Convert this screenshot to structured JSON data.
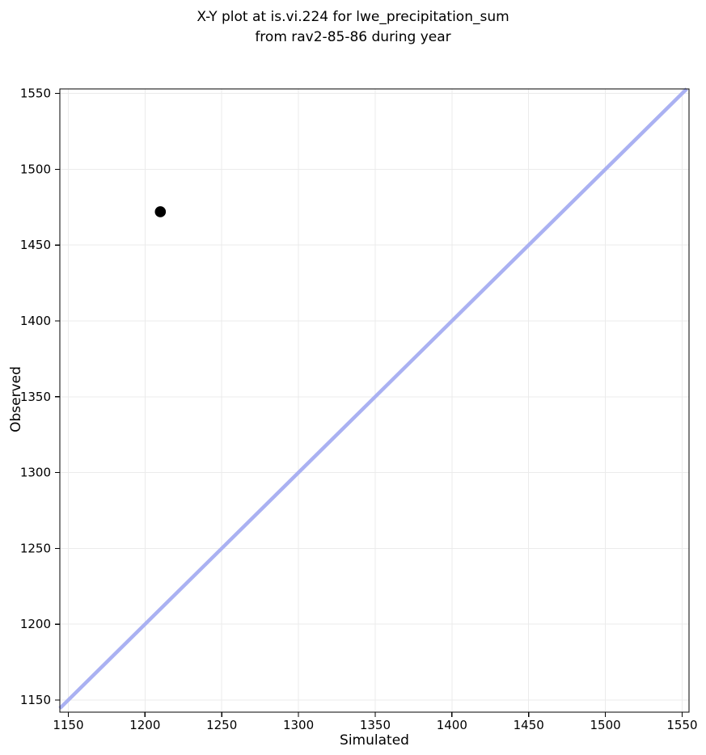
{
  "figure": {
    "background": "#ffffff"
  },
  "chart_data": {
    "type": "scatter",
    "title": "X-Y plot at is.vi.224 for lwe_precipitation_sum\nfrom rav2-85-86 during year",
    "title_lines": [
      "X-Y plot at is.vi.224 for lwe_precipitation_sum",
      "from rav2-85-86 during year"
    ],
    "xlabel": "Simulated",
    "ylabel": "Observed",
    "xlim": [
      1144.5,
      1554.5
    ],
    "ylim": [
      1142,
      1553
    ],
    "xticks": [
      1150,
      1200,
      1250,
      1300,
      1350,
      1400,
      1450,
      1500,
      1550
    ],
    "yticks": [
      1150,
      1200,
      1250,
      1300,
      1350,
      1400,
      1450,
      1500,
      1550
    ],
    "grid": true,
    "legend": false,
    "points": [
      {
        "x": 1210,
        "y": 1472
      }
    ],
    "identity_line": {
      "show": true,
      "comment": "1:1 y=x reference line spanning the axes"
    },
    "styles": {
      "grid_color": "#ebebeb",
      "spine_color": "#000000",
      "tick_color": "#000000",
      "text_color": "#000000",
      "point_color": "#000000",
      "point_radius": 6.8,
      "line_color": "#aab1f2",
      "line_width": 4.5,
      "tick_font_size": 15
    }
  }
}
